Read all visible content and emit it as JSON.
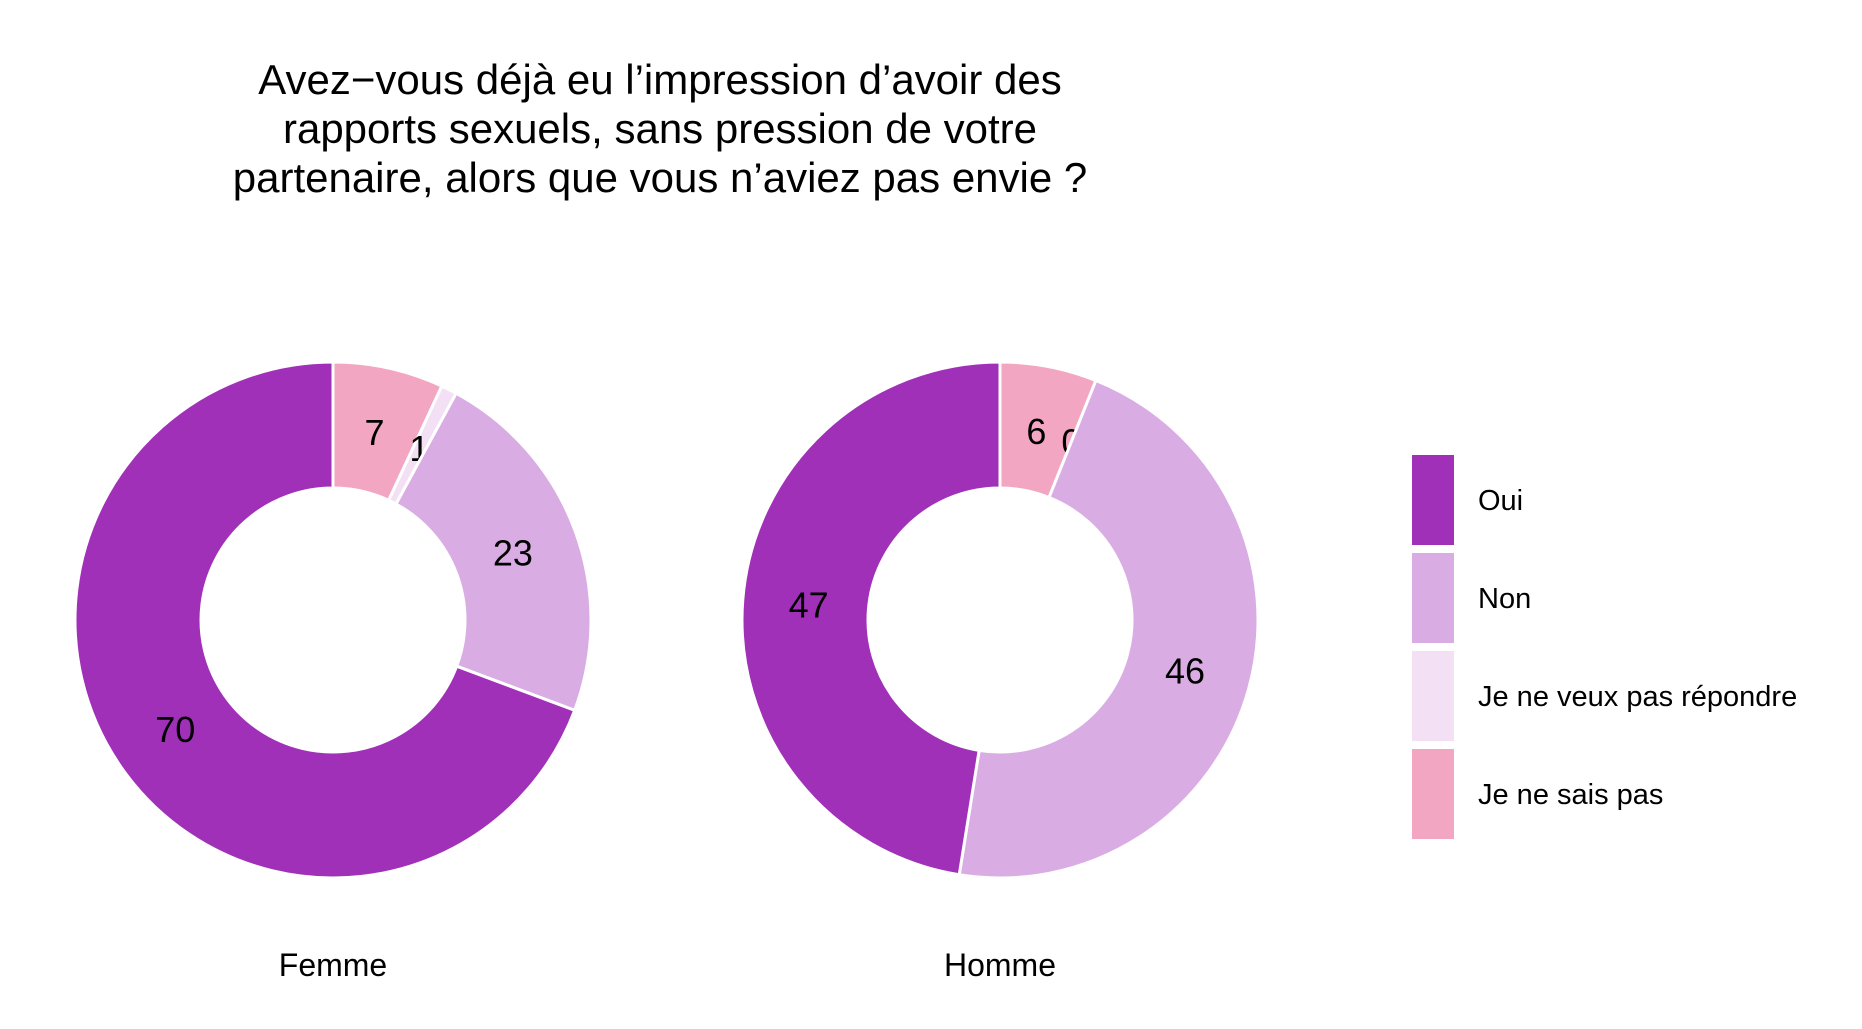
{
  "chart_data": {
    "type": "pie",
    "variant": "donut",
    "title_lines": [
      "Avez−vous déjà eu l’impression d’avoir des",
      "rapports sexuels, sans pression de votre",
      "partenaire, alors que vous n’aviez pas envie ?"
    ],
    "categories": [
      "Oui",
      "Non",
      "Je ne veux pas répondre",
      "Je ne sais pas"
    ],
    "colors": {
      "Oui": "#a030b8",
      "Non": "#d9ade3",
      "Je ne veux pas répondre": "#f3e0f5",
      "Je ne sais pas": "#f2a6c1"
    },
    "legend_position": "right",
    "facets": [
      {
        "label": "Femme",
        "values": {
          "Je ne sais pas": 7,
          "Je ne veux pas répondre": 1,
          "Non": 23,
          "Oui": 70
        }
      },
      {
        "label": "Homme",
        "values": {
          "Je ne sais pas": 6,
          "Je ne veux pas répondre": 0,
          "Non": 46,
          "Oui": 47
        }
      }
    ],
    "slice_order": [
      "Je ne sais pas",
      "Je ne veux pas répondre",
      "Non",
      "Oui"
    ]
  }
}
